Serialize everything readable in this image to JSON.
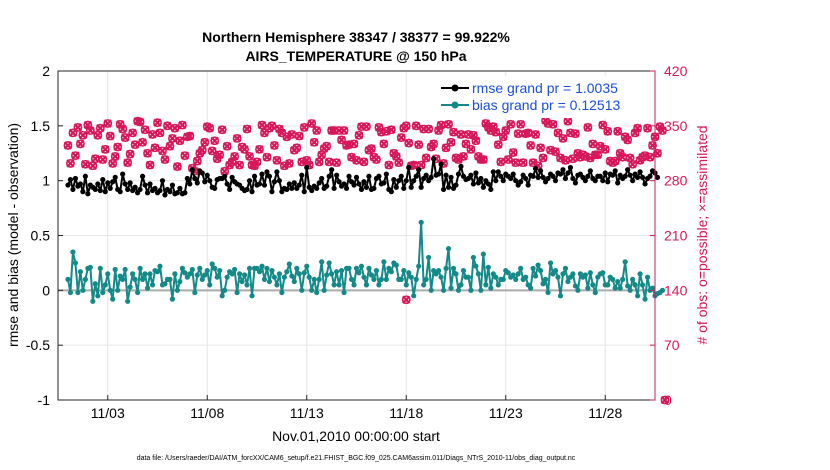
{
  "chart_data": {
    "type": "line",
    "title": "Northern Hemisphere 38347 / 38377 = 99.922%",
    "subtitle": "AIRS_TEMPERATURE @ 150 hPa",
    "xlabel": "Nov.01,2010 00:00:00 start",
    "ylabel_left": "rmse and bias (model - observation)",
    "ylabel_right": "# of obs: o=possible; ×=assimilated",
    "footer": "data file: /Users/raeder/DAI/ATM_forcXX/CAM6_setup/f.e21.FHIST_BGC.f09_025.CAM6assim.011/Diags_NTrS_2010-11/obs_diag_output.nc",
    "xlim": [
      0.5,
      30.5
    ],
    "ylim_left": [
      -1,
      2
    ],
    "ylim_right": [
      0,
      420
    ],
    "x_ticks": [
      3,
      8,
      13,
      18,
      23,
      28
    ],
    "x_tick_labels": [
      "11/03",
      "11/08",
      "11/13",
      "11/18",
      "11/23",
      "11/28"
    ],
    "y_left_ticks": [
      "-1",
      "-0.5",
      "0",
      "0.5",
      "1",
      "1.5",
      "2"
    ],
    "y_right_ticks": [
      "0",
      "70",
      "140",
      "210",
      "280",
      "350",
      "420"
    ],
    "grid": true,
    "legend_position": "top-right",
    "colors": {
      "rmse": "#000000",
      "bias": "#138a87",
      "obs": "#d6185a",
      "zero_line": "#aaaaaa",
      "legend_text": "#1a4fd6"
    },
    "series": [
      {
        "name": "rmse grand pr = 1.0035",
        "values": [
          0.96,
          1.01,
          0.92,
          1.02,
          0.95,
          0.97,
          0.9,
          1.04,
          0.88,
          0.96,
          0.94,
          0.92,
          0.97,
          0.91,
          1.01,
          0.9,
          0.98,
          0.93,
          0.99,
          1.03,
          0.92,
          0.9,
          1.06,
          0.97,
          0.92,
          0.98,
          0.91,
          0.94,
          0.89,
          0.92,
          1.04,
          0.96,
          0.89,
          0.97,
          0.91,
          0.93,
          0.89,
          0.91,
          1.0,
          0.87,
          0.92,
          0.9,
          0.96,
          0.88,
          0.89,
          0.93,
          0.88,
          0.89,
          1.02,
          0.97,
          1.1,
          1.02,
          0.98,
          1.09,
          1.07,
          0.99,
          1.05,
          1.0,
          0.94,
          0.93,
          1.01,
          1.02,
          1.02,
          1.04,
          0.97,
          0.92,
          1.03,
          0.99,
          0.97,
          0.96,
          0.93,
          0.91,
          0.92,
          1.0,
          0.9,
          1.04,
          0.96,
          0.97,
          1.06,
          0.96,
          1.08,
          1.04,
          0.9,
          0.99,
          1.08,
          1.0,
          0.9,
          0.93,
          0.92,
          0.97,
          0.93,
          0.98,
          0.93,
          0.96,
          1.05,
          0.9,
          1.12,
          0.94,
          0.91,
          0.95,
          0.93,
          0.98,
          1.02,
          0.93,
          0.95,
          1.04,
          1.1,
          0.93,
          1.05,
          0.99,
          0.95,
          0.97,
          0.93,
          1.04,
          0.99,
          0.96,
          1.03,
          0.97,
          0.92,
          0.99,
          0.94,
          1.04,
          0.92,
          0.93,
          1.02,
          1.04,
          0.97,
          0.98,
          1.06,
          0.92,
          0.9,
          1.01,
          0.94,
          1.0,
          1.04,
          0.93,
          1.0,
          1.12,
          0.94,
          1.0,
          1.04,
          1.1,
          0.94,
          1.02,
          1.05,
          1.0,
          1.03,
          1.2,
          1.05,
          1.06,
          1.15,
          0.92,
          1.05,
          0.94,
          1.03,
          0.93,
          0.96,
          1.06,
          1.13,
          1.04,
          1.01,
          1.02,
          1.05,
          0.97,
          1.07,
          0.98,
          1.02,
          0.94,
          1.0,
          0.97,
          0.92,
          1.08,
          1.0,
          1.08,
          1.04,
          1.0,
          1.06,
          1.04,
          1.02,
          1.06,
          1.0,
          0.96,
          0.99,
          1.05,
          1.02,
          0.96,
          1.05,
          1.04,
          1.11,
          1.03,
          1.09,
          1.03,
          0.99,
          1.02,
          1.06,
          1.04,
          1.0,
          1.07,
          1.06,
          1.1,
          1.02,
          1.07,
          1.12,
          1.02,
          0.98,
          1.05,
          1.06,
          1.03,
          1.0,
          1.04,
          1.09,
          1.02,
          1.0,
          1.04,
          1.04,
          1.0,
          1.07,
          0.99,
          1.06,
          1.05,
          1.09,
          0.98,
          1.05,
          1.02,
          1.04,
          1.1,
          1.05,
          1.0,
          1.06,
          1.03,
          1.08,
          1.03,
          0.97,
          1.02,
          1.04,
          1.09,
          1.07,
          1.03
        ]
      },
      {
        "name": "bias grand pr = 0.12513",
        "values": [
          0.1,
          -0.02,
          0.35,
          0.25,
          -0.02,
          0.17,
          0.0,
          0.1,
          0.2,
          0.21,
          -0.1,
          0.06,
          -0.05,
          0.2,
          -0.02,
          0.05,
          0.15,
          0.0,
          -0.08,
          0.19,
          0.0,
          0.13,
          0.1,
          0.19,
          -0.1,
          0.03,
          0.15,
          0.1,
          -0.02,
          0.2,
          0.1,
          0.15,
          0.02,
          0.15,
          0.05,
          0.18,
          0.17,
          0.22,
          0.05,
          0.06,
          0.1,
          0.1,
          -0.08,
          0.15,
          0.0,
          0.08,
          0.2,
          0.16,
          0.12,
          0.15,
          0.19,
          -0.02,
          0.14,
          0.2,
          0.1,
          0.14,
          0.18,
          0.05,
          0.24,
          0.2,
          0.12,
          0.18,
          -0.05,
          0.0,
          0.12,
          0.17,
          0.15,
          0.19,
          -0.02,
          0.15,
          0.08,
          0.14,
          0.05,
          0.2,
          -0.05,
          0.2,
          0.2,
          0.17,
          0.22,
          0.1,
          0.2,
          0.08,
          0.18,
          0.12,
          0.05,
          0.15,
          -0.02,
          0.12,
          0.17,
          0.24,
          0.13,
          0.08,
          0.2,
          0.15,
          0.0,
          0.16,
          0.22,
          0.12,
          0.0,
          0.1,
          -0.02,
          0.1,
          0.26,
          0.0,
          0.14,
          0.25,
          0.15,
          0.05,
          0.17,
          0.05,
          0.18,
          -0.02,
          0.2,
          0.2,
          0.1,
          0.05,
          0.2,
          0.16,
          0.22,
          0.12,
          0.05,
          0.2,
          0.14,
          0.1,
          0.18,
          0.05,
          0.1,
          0.26,
          0.1,
          0.2,
          0.17,
          0.25,
          0.23,
          0.1,
          0.1,
          0.18,
          0.05,
          0.16,
          0.12,
          -0.05,
          0.1,
          0.22,
          0.62,
          0.05,
          0.1,
          0.3,
          0.0,
          0.18,
          0.15,
          0.18,
          0.12,
          0.0,
          0.2,
          0.38,
          0.02,
          0.2,
          0.15,
          0.0,
          0.05,
          0.18,
          0.12,
          0.12,
          0.0,
          0.3,
          0.22,
          0.15,
          0.0,
          0.33,
          0.05,
          0.21,
          0.02,
          0.15,
          0.12,
          0.05,
          0.1,
          0.1,
          0.18,
          0.16,
          0.12,
          0.14,
          0.1,
          0.15,
          0.2,
          0.1,
          0.12,
          0.05,
          0.02,
          0.2,
          0.13,
          0.23,
          0.18,
          0.06,
          0.1,
          -0.02,
          0.25,
          0.15,
          0.18,
          0.12,
          -0.05,
          0.15,
          0.2,
          0.08,
          0.12,
          0.15,
          0.04,
          0.0,
          0.15,
          0.12,
          0.14,
          0.02,
          0.16,
          0.05,
          -0.02,
          0.12,
          0.15,
          0.16,
          0.05,
          0.05,
          0.12,
          0.1,
          0.02,
          0.08,
          0.02,
          0.1,
          0.26,
          0.04,
          0.0,
          0.1,
          0.05,
          -0.05,
          0.15,
          0.05,
          -0.08,
          0.12,
          0.0,
          0.02,
          -0.05,
          -0.03,
          -0.02,
          0.0
        ]
      }
    ],
    "obs_possible": [
      325,
      302,
      341,
      312,
      348,
      327,
      338,
      301,
      351,
      344,
      299,
      308,
      338,
      347,
      307,
      320,
      353,
      337,
      302,
      311,
      323,
      352,
      346,
      335,
      303,
      314,
      341,
      326,
      356,
      355,
      329,
      345,
      315,
      300,
      339,
      322,
      354,
      341,
      318,
      307,
      350,
      324,
      334,
      347,
      298,
      331,
      351,
      312,
      336,
      337,
      296,
      292,
      305,
      315,
      319,
      329,
      349,
      347,
      318,
      331,
      308,
      313,
      345,
      292,
      324,
      300,
      304,
      311,
      334,
      300,
      323,
      320,
      346,
      311,
      300,
      299,
      304,
      320,
      351,
      341,
      310,
      347,
      350,
      325,
      306,
      346,
      341,
      299,
      336,
      302,
      339,
      319,
      322,
      337,
      304,
      348,
      306,
      300,
      353,
      329,
      344,
      304,
      313,
      321,
      324,
      304,
      344,
      344,
      303,
      344,
      332,
      344,
      325,
      326,
      310,
      327,
      306,
      338,
      349,
      304,
      349,
      319,
      321,
      310,
      307,
      348,
      342,
      327,
      343,
      300,
      345,
      315,
      311,
      303,
      335,
      347,
      350,
      328,
      299,
      300,
      350,
      326,
      300,
      346,
      309,
      346,
      323,
      327,
      308,
      344,
      351,
      302,
      322,
      352,
      329,
      342,
      309,
      307,
      339,
      311,
      327,
      339,
      320,
      338,
      331,
      311,
      307,
      307,
      353,
      348,
      344,
      349,
      342,
      326,
      304,
      336,
      344,
      307,
      352,
      316,
      303,
      340,
      352,
      303,
      340,
      341,
      325,
      303,
      339,
      299,
      322,
      309,
      357,
      353,
      319,
      352,
      317,
      341,
      309,
      334,
      306,
      356,
      341,
      308,
      340,
      315,
      310,
      313,
      311,
      348,
      309,
      327,
      313,
      313,
      324,
      351,
      320,
      343,
      305,
      303,
      305,
      343,
      315,
      310,
      336,
      332,
      309,
      301,
      341,
      347,
      306,
      310,
      312,
      347,
      310,
      325,
      336,
      315,
      349,
      344
    ],
    "obs_assimilated": [
      325,
      302,
      341,
      312,
      348,
      327,
      338,
      301,
      351,
      344,
      299,
      308,
      338,
      347,
      307,
      320,
      353,
      337,
      302,
      311,
      323,
      352,
      346,
      335,
      303,
      314,
      341,
      326,
      356,
      355,
      329,
      345,
      315,
      300,
      339,
      322,
      354,
      341,
      318,
      307,
      350,
      324,
      334,
      347,
      298,
      331,
      351,
      312,
      336,
      337,
      296,
      292,
      305,
      315,
      319,
      329,
      349,
      347,
      318,
      331,
      308,
      313,
      345,
      292,
      324,
      300,
      304,
      311,
      334,
      300,
      323,
      320,
      346,
      311,
      300,
      299,
      304,
      320,
      351,
      341,
      310,
      347,
      350,
      325,
      306,
      346,
      341,
      299,
      336,
      302,
      339,
      319,
      322,
      337,
      304,
      348,
      306,
      300,
      353,
      329,
      344,
      304,
      313,
      321,
      324,
      304,
      344,
      344,
      303,
      344,
      332,
      344,
      325,
      326,
      310,
      327,
      306,
      338,
      349,
      304,
      349,
      319,
      321,
      310,
      307,
      348,
      342,
      327,
      343,
      300,
      345,
      315,
      311,
      303,
      335,
      347,
      350,
      328,
      299,
      300,
      350,
      326,
      300,
      346,
      309,
      346,
      323,
      327,
      308,
      344,
      351,
      302,
      322,
      352,
      329,
      342,
      309,
      307,
      339,
      311,
      327,
      339,
      320,
      338,
      331,
      311,
      307,
      307,
      353,
      348,
      344,
      349,
      342,
      326,
      304,
      336,
      344,
      307,
      352,
      316,
      303,
      340,
      352,
      303,
      340,
      341,
      325,
      303,
      339,
      299,
      322,
      309,
      357,
      353,
      319,
      352,
      317,
      341,
      309,
      334,
      306,
      356,
      341,
      308,
      340,
      315,
      310,
      313,
      311,
      348,
      309,
      327,
      313,
      313,
      324,
      351,
      320,
      343,
      305,
      303,
      305,
      343,
      315,
      310,
      336,
      332,
      309,
      301,
      341,
      347,
      306,
      310,
      312,
      347,
      310,
      325,
      336,
      315,
      349,
      344
    ],
    "obs_extra_points": [
      {
        "t": 18,
        "obs": 128
      },
      {
        "t": 31,
        "obs": 0
      }
    ]
  }
}
